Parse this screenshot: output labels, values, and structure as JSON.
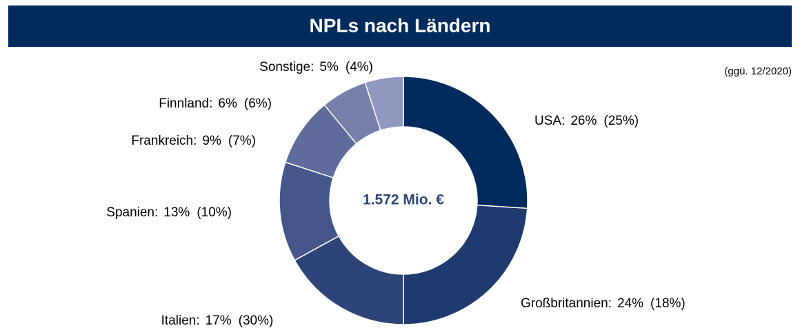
{
  "chart_data": {
    "type": "donut",
    "title": "NPLs nach Ländern",
    "center_label": "1.572 Mio. €",
    "annotation": "(ggü. 12/2020)",
    "categories": [
      "USA:",
      "Großbritannien:",
      "Italien:",
      "Spanien:",
      "Frankreich:",
      "Finnland:",
      "Sonstige:"
    ],
    "values": [
      26,
      24,
      17,
      13,
      9,
      6,
      5
    ],
    "value_labels": [
      "26%",
      "24%",
      "17%",
      "13%",
      "9%",
      "6%",
      "5%"
    ],
    "prior_value_labels": [
      "(25%)",
      "(18%)",
      "(30%)",
      "(10%)",
      "(7%)",
      "(6%)",
      "(4%)"
    ],
    "colors": [
      "#002b5c",
      "#1e3a6e",
      "#2e4478",
      "#46568a",
      "#5f6b9b",
      "#7680aa",
      "#8f98bf"
    ]
  }
}
